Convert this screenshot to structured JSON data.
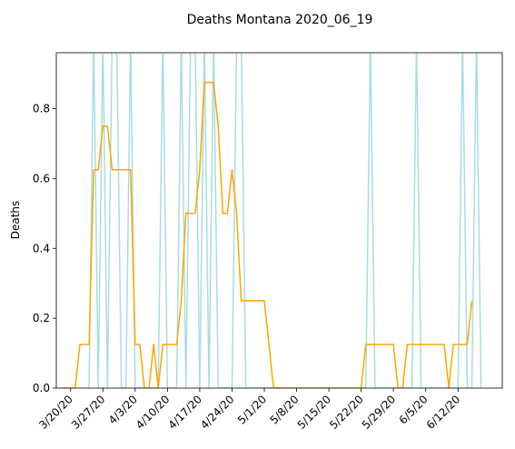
{
  "chart_data": {
    "type": "line",
    "title": "Deaths Montana 2020_06_19",
    "xlabel": "",
    "ylabel": "Deaths",
    "start_date": "2020-03-18",
    "ylim": [
      0,
      0.96
    ],
    "yticks": [
      0.0,
      0.2,
      0.4,
      0.6,
      0.8
    ],
    "ytick_labels": [
      "0.0",
      "0.2",
      "0.4",
      "0.6",
      "0.8"
    ],
    "xtick_labels": [
      "3/20/20",
      "3/27/20",
      "4/3/20",
      "4/10/20",
      "4/17/20",
      "4/24/20",
      "5/1/20",
      "5/8/20",
      "5/15/20",
      "5/22/20",
      "5/29/20",
      "6/5/20",
      "6/12/20"
    ],
    "grid": false,
    "series": [
      {
        "name": "",
        "color": "#a8dde0",
        "x": [
          "2020-03-24",
          "2020-03-25",
          "2020-03-26",
          "2020-03-27",
          "2020-03-28",
          "2020-03-29",
          "2020-03-30",
          "2020-03-31",
          "2020-04-01",
          "2020-04-02",
          "2020-04-03",
          "2020-04-04",
          "2020-04-08",
          "2020-04-09",
          "2020-04-10",
          "2020-04-12",
          "2020-04-13",
          "2020-04-14",
          "2020-04-15",
          "2020-04-16",
          "2020-04-17",
          "2020-04-18",
          "2020-04-19",
          "2020-04-20",
          "2020-04-21",
          "2020-04-24",
          "2020-04-25",
          "2020-04-26",
          "2020-04-27",
          "2020-05-23",
          "2020-05-24",
          "2020-05-25",
          "2020-06-02",
          "2020-06-03",
          "2020-06-04",
          "2020-06-12",
          "2020-06-13",
          "2020-06-14",
          "2020-06-15",
          "2020-06-16",
          "2020-06-17"
        ],
        "y": [
          0,
          1,
          0,
          1,
          0,
          1,
          1,
          0,
          0,
          1,
          0,
          0,
          0,
          1,
          0,
          0,
          1,
          0,
          1,
          1,
          0,
          1,
          0,
          1,
          0,
          0,
          1,
          1,
          0,
          0,
          1,
          0,
          0,
          1,
          0,
          0,
          1,
          0,
          0,
          1,
          0
        ]
      },
      {
        "name": "",
        "color": "#ffa500",
        "x": [
          "2020-03-18",
          "2020-03-19",
          "2020-03-20",
          "2020-03-21",
          "2020-03-22",
          "2020-03-23",
          "2020-03-24",
          "2020-03-25",
          "2020-03-26",
          "2020-03-27",
          "2020-03-28",
          "2020-03-29",
          "2020-03-30",
          "2020-03-31",
          "2020-04-01",
          "2020-04-02",
          "2020-04-03",
          "2020-04-04",
          "2020-04-05",
          "2020-04-06",
          "2020-04-07",
          "2020-04-08",
          "2020-04-09",
          "2020-04-10",
          "2020-04-11",
          "2020-04-12",
          "2020-04-13",
          "2020-04-14",
          "2020-04-15",
          "2020-04-16",
          "2020-04-17",
          "2020-04-18",
          "2020-04-19",
          "2020-04-20",
          "2020-04-21",
          "2020-04-22",
          "2020-04-23",
          "2020-04-24",
          "2020-04-25",
          "2020-04-26",
          "2020-04-27",
          "2020-04-28",
          "2020-04-29",
          "2020-04-30",
          "2020-05-01",
          "2020-05-02",
          "2020-05-03",
          "2020-05-04",
          "2020-05-05",
          "2020-05-06",
          "2020-05-07",
          "2020-05-08",
          "2020-05-09",
          "2020-05-10",
          "2020-05-11",
          "2020-05-12",
          "2020-05-13",
          "2020-05-14",
          "2020-05-15",
          "2020-05-16",
          "2020-05-17",
          "2020-05-18",
          "2020-05-19",
          "2020-05-20",
          "2020-05-21",
          "2020-05-22",
          "2020-05-23",
          "2020-05-24",
          "2020-05-25",
          "2020-05-26",
          "2020-05-27",
          "2020-05-28",
          "2020-05-29",
          "2020-05-30",
          "2020-05-31",
          "2020-06-01",
          "2020-06-02",
          "2020-06-03",
          "2020-06-04",
          "2020-06-05",
          "2020-06-06",
          "2020-06-07",
          "2020-06-08",
          "2020-06-09",
          "2020-06-10",
          "2020-06-11",
          "2020-06-12",
          "2020-06-13",
          "2020-06-14",
          "2020-06-15"
        ],
        "y": [
          0,
          0,
          0,
          0,
          0.125,
          0.125,
          0.125,
          0.625,
          0.625,
          0.75,
          0.75,
          0.625,
          0.625,
          0.625,
          0.625,
          0.625,
          0.125,
          0.125,
          0,
          0,
          0.125,
          0,
          0.125,
          0.125,
          0.125,
          0.125,
          0.25,
          0.5,
          0.5,
          0.5,
          0.625,
          0.875,
          0.875,
          0.875,
          0.75,
          0.5,
          0.5,
          0.625,
          0.5,
          0.25,
          0.25,
          0.25,
          0.25,
          0.25,
          0.25,
          0.125,
          0,
          0,
          0,
          0,
          0,
          0,
          0,
          0,
          0,
          0,
          0,
          0,
          0,
          0,
          0,
          0,
          0,
          0,
          0,
          0,
          0.125,
          0.125,
          0.125,
          0.125,
          0.125,
          0.125,
          0.125,
          0,
          0,
          0.125,
          0.125,
          0.125,
          0.125,
          0.125,
          0.125,
          0.125,
          0.125,
          0.125,
          0,
          0.125,
          0.125,
          0.125,
          0.125,
          0.25
        ]
      }
    ]
  }
}
